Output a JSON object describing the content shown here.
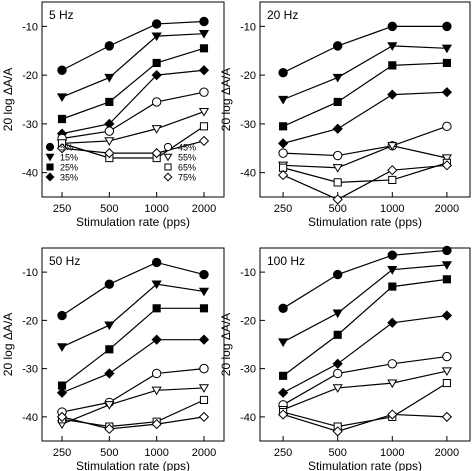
{
  "chart_data": {
    "type": "line",
    "x": [
      250,
      500,
      1000,
      2000
    ],
    "x_tick_labels": [
      "250",
      "500",
      "1000",
      "2000"
    ],
    "xlabel": "Stimulation rate (pps)",
    "ylabel": "20 log ΔA/A",
    "ylim": [
      -45,
      -5
    ],
    "y_ticks": [
      -10,
      -20,
      -30,
      -40
    ],
    "y_tick_labels": [
      "-10",
      "-20",
      "-30",
      "-40"
    ],
    "legend": [
      {
        "label": "5%",
        "marker": "circle",
        "fill": "filled"
      },
      {
        "label": "15%",
        "marker": "triangle-down",
        "fill": "filled"
      },
      {
        "label": "25%",
        "marker": "square",
        "fill": "filled"
      },
      {
        "label": "35%",
        "marker": "diamond",
        "fill": "filled"
      },
      {
        "label": "45%",
        "marker": "circle",
        "fill": "open"
      },
      {
        "label": "55%",
        "marker": "triangle-down",
        "fill": "open"
      },
      {
        "label": "65%",
        "marker": "square",
        "fill": "open"
      },
      {
        "label": "75%",
        "marker": "diamond",
        "fill": "open"
      }
    ],
    "legend_location": "bottom of first panel",
    "panels": [
      {
        "title": "5 Hz",
        "series": [
          {
            "label": "5%",
            "values": [
              -19,
              -14,
              -9.5,
              -9
            ]
          },
          {
            "label": "15%",
            "values": [
              -24.5,
              -20.5,
              -12,
              -11.5
            ]
          },
          {
            "label": "25%",
            "values": [
              -29,
              -25.5,
              -17.5,
              -14.5
            ]
          },
          {
            "label": "35%",
            "values": [
              -32,
              -30,
              -20,
              -19
            ]
          },
          {
            "label": "45%",
            "values": [
              -33,
              -31.5,
              -25.5,
              -23.5
            ]
          },
          {
            "label": "55%",
            "values": [
              -34,
              -33.5,
              -31,
              -27.5
            ]
          },
          {
            "label": "65%",
            "values": [
              -34,
              -37,
              -37,
              -30.5
            ]
          },
          {
            "label": "75%",
            "values": [
              -35,
              -36,
              -36,
              -33.5
            ]
          }
        ]
      },
      {
        "title": "20 Hz",
        "series": [
          {
            "label": "5%",
            "values": [
              -19.5,
              -14,
              -10,
              -10
            ]
          },
          {
            "label": "15%",
            "values": [
              -25,
              -20.5,
              -14,
              -14.5
            ]
          },
          {
            "label": "25%",
            "values": [
              -30.5,
              -25.5,
              -18,
              -17.5
            ]
          },
          {
            "label": "35%",
            "values": [
              -34,
              -31,
              -24,
              -23.5
            ]
          },
          {
            "label": "45%",
            "values": [
              -36,
              -36.5,
              -34.5,
              -30.5
            ]
          },
          {
            "label": "55%",
            "values": [
              -38.5,
              -39,
              -34.5,
              -37
            ]
          },
          {
            "label": "65%",
            "values": [
              -39,
              -42,
              -41.5,
              -38
            ]
          },
          {
            "label": "75%",
            "values": [
              -40.5,
              -45.5,
              -39.5,
              -38.5
            ]
          }
        ]
      },
      {
        "title": "50 Hz",
        "series": [
          {
            "label": "5%",
            "values": [
              -19,
              -12.5,
              -8,
              -10.5
            ]
          },
          {
            "label": "15%",
            "values": [
              -25.5,
              -21,
              -12.5,
              -14
            ]
          },
          {
            "label": "25%",
            "values": [
              -33.5,
              -26,
              -17.5,
              -17.5
            ]
          },
          {
            "label": "35%",
            "values": [
              -35,
              -31,
              -24,
              -24
            ]
          },
          {
            "label": "45%",
            "values": [
              -39,
              -37,
              -31,
              -30
            ]
          },
          {
            "label": "55%",
            "values": [
              -41.5,
              -37.5,
              -34.5,
              -34
            ]
          },
          {
            "label": "65%",
            "values": [
              -40.5,
              -42,
              -41,
              -36.5
            ]
          },
          {
            "label": "75%",
            "values": [
              -40,
              -42.5,
              -41.5,
              -40
            ]
          }
        ]
      },
      {
        "title": "100 Hz",
        "series": [
          {
            "label": "5%",
            "values": [
              -17.5,
              -10.5,
              -6.5,
              -5.5
            ]
          },
          {
            "label": "15%",
            "values": [
              -24.5,
              -18.5,
              -9.5,
              -8.5
            ]
          },
          {
            "label": "25%",
            "values": [
              -31.5,
              -23,
              -13,
              -11.5
            ]
          },
          {
            "label": "35%",
            "values": [
              -35,
              -29,
              -20.5,
              -19
            ]
          },
          {
            "label": "45%",
            "values": [
              -37.5,
              -31,
              -29,
              -27.5
            ]
          },
          {
            "label": "55%",
            "values": [
              -38.5,
              -34,
              -33,
              -30.5
            ]
          },
          {
            "label": "65%",
            "values": [
              -39,
              -42,
              -40,
              -33
            ]
          },
          {
            "label": "75%",
            "values": [
              -39.5,
              -43,
              -39.5,
              -40
            ]
          }
        ]
      }
    ]
  }
}
